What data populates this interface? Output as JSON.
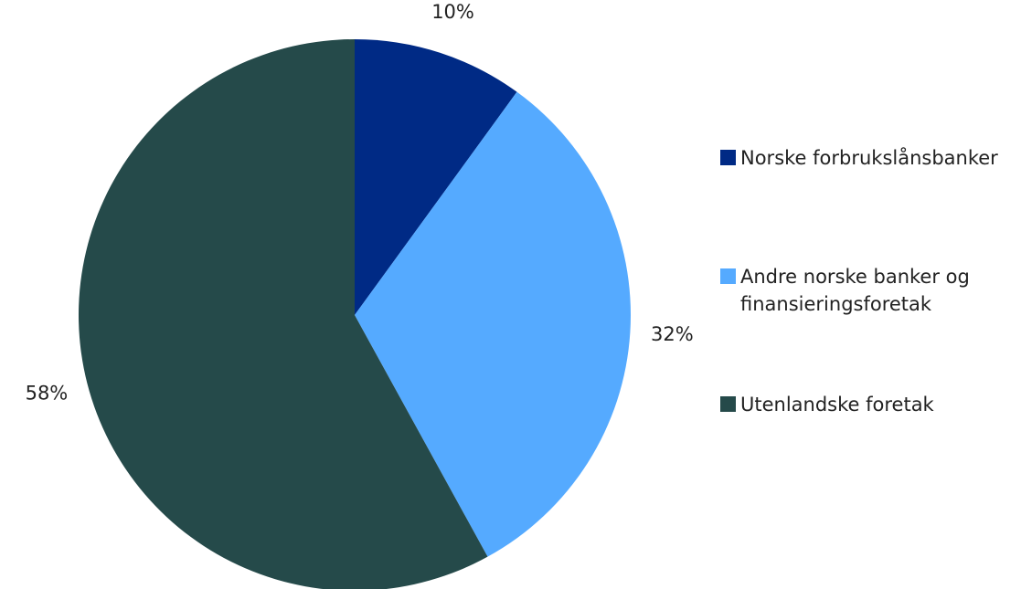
{
  "chart_data": {
    "type": "pie",
    "categories": [
      "Norske forbrukslånsbanker",
      "Andre norske banker og finansieringsforetak",
      "Utenlandske foretak"
    ],
    "values": [
      10,
      32,
      58
    ],
    "value_labels": [
      "10%",
      "32%",
      "58%"
    ],
    "colors": [
      "#002a85",
      "#55aaff",
      "#254a4a"
    ],
    "legend": "right"
  }
}
